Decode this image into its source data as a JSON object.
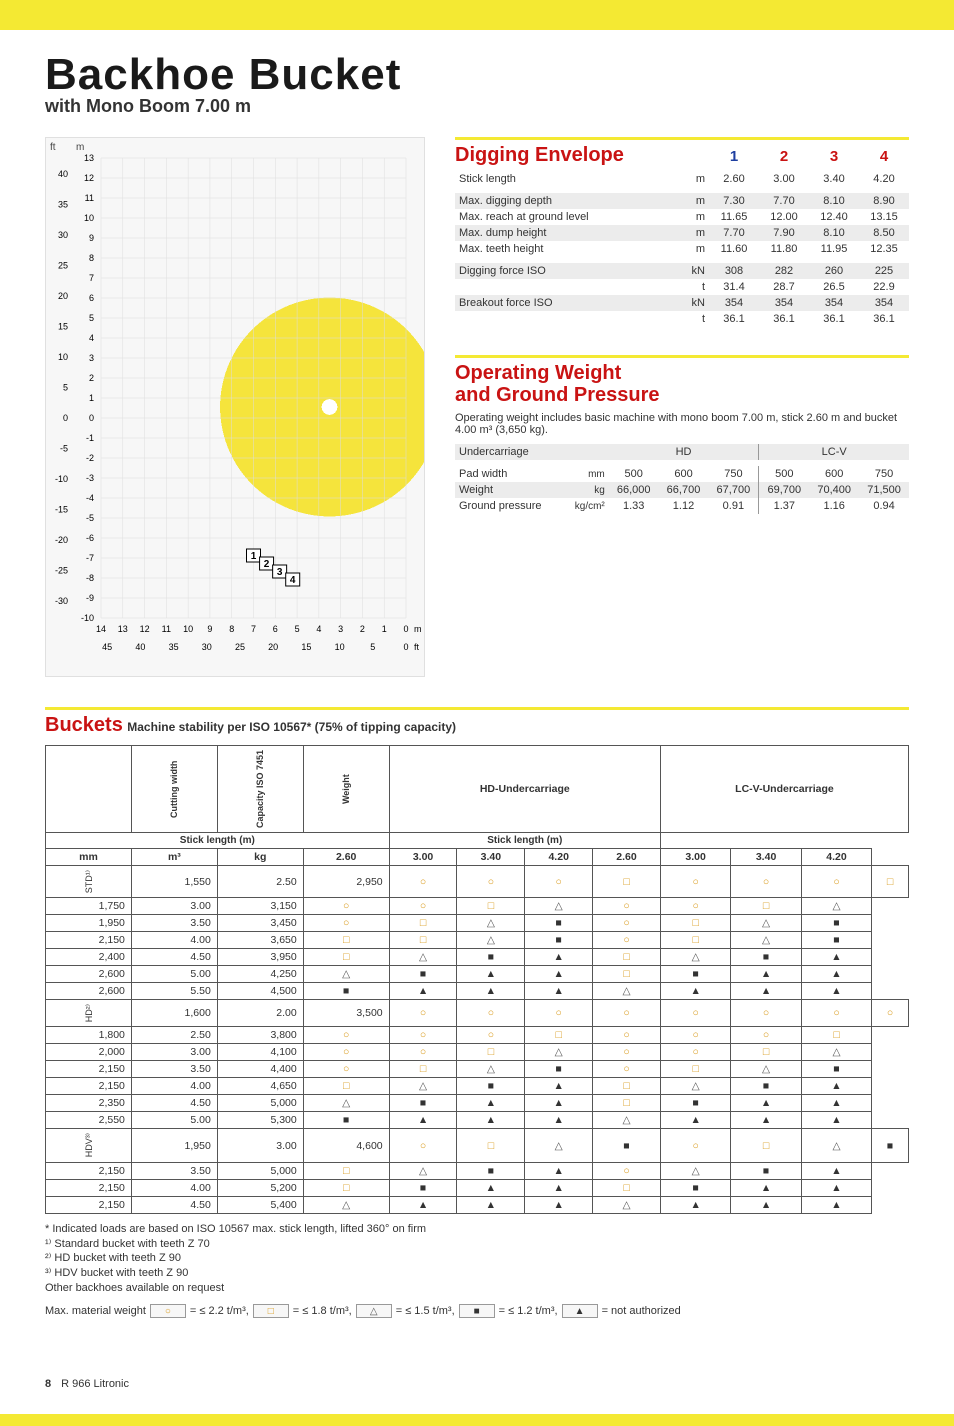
{
  "title": "Backhoe Bucket",
  "subtitle": "with Mono Boom 7.00 m",
  "digging_envelope": {
    "heading": "Digging Envelope",
    "col_nums": [
      "1",
      "2",
      "3",
      "4"
    ],
    "col1_blue": true,
    "rows": [
      {
        "label": "Stick length",
        "unit": "m",
        "vals": [
          "2.60",
          "3.00",
          "3.40",
          "4.20"
        ],
        "zebra": false,
        "spacer_after": true
      },
      {
        "label": "Max. digging depth",
        "unit": "m",
        "vals": [
          "7.30",
          "7.70",
          "8.10",
          "8.90"
        ],
        "zebra": true
      },
      {
        "label": "Max. reach at ground level",
        "unit": "m",
        "vals": [
          "11.65",
          "12.00",
          "12.40",
          "13.15"
        ],
        "zebra": false
      },
      {
        "label": "Max. dump height",
        "unit": "m",
        "vals": [
          "7.70",
          "7.90",
          "8.10",
          "8.50"
        ],
        "zebra": true
      },
      {
        "label": "Max. teeth height",
        "unit": "m",
        "vals": [
          "11.60",
          "11.80",
          "11.95",
          "12.35"
        ],
        "zebra": false,
        "spacer_after": true
      },
      {
        "label": "Digging force ISO",
        "unit": "kN",
        "vals": [
          "308",
          "282",
          "260",
          "225"
        ],
        "zebra": true
      },
      {
        "label": "",
        "unit": "t",
        "vals": [
          "31.4",
          "28.7",
          "26.5",
          "22.9"
        ],
        "zebra": false
      },
      {
        "label": "Breakout force ISO",
        "unit": "kN",
        "vals": [
          "354",
          "354",
          "354",
          "354"
        ],
        "zebra": true
      },
      {
        "label": "",
        "unit": "t",
        "vals": [
          "36.1",
          "36.1",
          "36.1",
          "36.1"
        ],
        "zebra": false
      }
    ]
  },
  "operating_weight": {
    "heading_l1": "Operating Weight",
    "heading_l2": "and Ground Pressure",
    "desc": "Operating weight includes basic machine with mono boom 7.00 m, stick 2.60 m and bucket 4.00 m³ (3,650 kg).",
    "group_headers": [
      "HD",
      "LC-V"
    ],
    "sub_headers": [
      "500",
      "600",
      "750",
      "500",
      "600",
      "750"
    ],
    "rows": [
      {
        "label": "Undercarriage",
        "unit": "",
        "vals": [
          "",
          "",
          "",
          "",
          "",
          ""
        ],
        "zebra": true,
        "is_header": true
      },
      {
        "label": "Pad width",
        "unit": "mm",
        "vals": [
          "500",
          "600",
          "750",
          "500",
          "600",
          "750"
        ],
        "zebra": false
      },
      {
        "label": "Weight",
        "unit": "kg",
        "vals": [
          "66,000",
          "66,700",
          "67,700",
          "69,700",
          "70,400",
          "71,500"
        ],
        "zebra": true
      },
      {
        "label": "Ground pressure",
        "unit": "kg/cm²",
        "vals": [
          "1.33",
          "1.12",
          "0.91",
          "1.37",
          "1.16",
          "0.94"
        ],
        "zebra": false
      }
    ]
  },
  "buckets": {
    "heading": "Buckets",
    "sub_heading": "Machine stability per ISO 10567* (75% of tipping capacity)",
    "uc_headers": [
      "HD-Undercarriage",
      "LC-V-Undercarriage"
    ],
    "stick_label": "Stick length (m)",
    "sticks": [
      "2.60",
      "3.00",
      "3.40",
      "4.20"
    ],
    "col_headers": [
      "Cutting width",
      "Capacity ISO 7451",
      "Weight"
    ],
    "units": [
      "mm",
      "m³",
      "kg"
    ],
    "groups": [
      {
        "label": "STD¹⁾",
        "rows": [
          {
            "cw": "1,550",
            "cap": "2.50",
            "wt": "2,950",
            "hd": [
              "c",
              "c",
              "c",
              "s"
            ],
            "lc": [
              "c",
              "c",
              "c",
              "s"
            ]
          },
          {
            "cw": "1,750",
            "cap": "3.00",
            "wt": "3,150",
            "hd": [
              "c",
              "c",
              "s",
              "t"
            ],
            "lc": [
              "c",
              "c",
              "s",
              "t"
            ]
          },
          {
            "cw": "1,950",
            "cap": "3.50",
            "wt": "3,450",
            "hd": [
              "c",
              "s",
              "t",
              "fs"
            ],
            "lc": [
              "c",
              "s",
              "t",
              "fs"
            ]
          },
          {
            "cw": "2,150",
            "cap": "4.00",
            "wt": "3,650",
            "hd": [
              "s",
              "s",
              "t",
              "fs"
            ],
            "lc": [
              "c",
              "s",
              "t",
              "fs"
            ]
          },
          {
            "cw": "2,400",
            "cap": "4.50",
            "wt": "3,950",
            "hd": [
              "s",
              "t",
              "fs",
              "ft"
            ],
            "lc": [
              "s",
              "t",
              "fs",
              "ft"
            ]
          },
          {
            "cw": "2,600",
            "cap": "5.00",
            "wt": "4,250",
            "hd": [
              "t",
              "fs",
              "ft",
              "ft"
            ],
            "lc": [
              "s",
              "fs",
              "ft",
              "ft"
            ]
          },
          {
            "cw": "2,600",
            "cap": "5.50",
            "wt": "4,500",
            "hd": [
              "fs",
              "ft",
              "ft",
              "ft"
            ],
            "lc": [
              "t",
              "ft",
              "ft",
              "ft"
            ]
          }
        ]
      },
      {
        "label": "HD²⁾",
        "rows": [
          {
            "cw": "1,600",
            "cap": "2.00",
            "wt": "3,500",
            "hd": [
              "c",
              "c",
              "c",
              "c"
            ],
            "lc": [
              "c",
              "c",
              "c",
              "c"
            ]
          },
          {
            "cw": "1,800",
            "cap": "2.50",
            "wt": "3,800",
            "hd": [
              "c",
              "c",
              "c",
              "s"
            ],
            "lc": [
              "c",
              "c",
              "c",
              "s"
            ]
          },
          {
            "cw": "2,000",
            "cap": "3.00",
            "wt": "4,100",
            "hd": [
              "c",
              "c",
              "s",
              "t"
            ],
            "lc": [
              "c",
              "c",
              "s",
              "t"
            ]
          },
          {
            "cw": "2,150",
            "cap": "3.50",
            "wt": "4,400",
            "hd": [
              "c",
              "s",
              "t",
              "fs"
            ],
            "lc": [
              "c",
              "s",
              "t",
              "fs"
            ]
          },
          {
            "cw": "2,150",
            "cap": "4.00",
            "wt": "4,650",
            "hd": [
              "s",
              "t",
              "fs",
              "ft"
            ],
            "lc": [
              "s",
              "t",
              "fs",
              "ft"
            ]
          },
          {
            "cw": "2,350",
            "cap": "4.50",
            "wt": "5,000",
            "hd": [
              "t",
              "fs",
              "ft",
              "ft"
            ],
            "lc": [
              "s",
              "fs",
              "ft",
              "ft"
            ]
          },
          {
            "cw": "2,550",
            "cap": "5.00",
            "wt": "5,300",
            "hd": [
              "fs",
              "ft",
              "ft",
              "ft"
            ],
            "lc": [
              "t",
              "ft",
              "ft",
              "ft"
            ]
          }
        ]
      },
      {
        "label": "HDV³⁾",
        "rows": [
          {
            "cw": "1,950",
            "cap": "3.00",
            "wt": "4,600",
            "hd": [
              "c",
              "s",
              "t",
              "fs"
            ],
            "lc": [
              "c",
              "s",
              "t",
              "fs"
            ]
          },
          {
            "cw": "2,150",
            "cap": "3.50",
            "wt": "5,000",
            "hd": [
              "s",
              "t",
              "fs",
              "ft"
            ],
            "lc": [
              "c",
              "t",
              "fs",
              "ft"
            ]
          },
          {
            "cw": "2,150",
            "cap": "4.00",
            "wt": "5,200",
            "hd": [
              "s",
              "fs",
              "ft",
              "ft"
            ],
            "lc": [
              "s",
              "fs",
              "ft",
              "ft"
            ]
          },
          {
            "cw": "2,150",
            "cap": "4.50",
            "wt": "5,400",
            "hd": [
              "t",
              "ft",
              "ft",
              "ft"
            ],
            "lc": [
              "t",
              "ft",
              "ft",
              "ft"
            ]
          }
        ]
      }
    ],
    "footnotes": [
      "* Indicated loads are based on ISO 10567 max. stick length, lifted 360° on firm",
      "¹⁾ Standard bucket with teeth Z 70",
      "²⁾ HD bucket with teeth Z 90",
      "³⁾ HDV bucket with teeth Z 90",
      "Other backhoes available on request"
    ],
    "legend_prefix": "Max. material weight",
    "legend": [
      {
        "sym": "c",
        "txt": "= ≤ 2.2 t/m³,"
      },
      {
        "sym": "s",
        "txt": "= ≤ 1.8 t/m³,"
      },
      {
        "sym": "t",
        "txt": "= ≤ 1.5 t/m³,"
      },
      {
        "sym": "fs",
        "txt": "= ≤ 1.2 t/m³,"
      },
      {
        "sym": "ft",
        "txt": "= not authorized"
      }
    ]
  },
  "chart": {
    "y_unit_left": "ft",
    "y_unit_right": "m",
    "y_ticks_m": [
      13,
      12,
      11,
      10,
      9,
      8,
      7,
      6,
      5,
      4,
      3,
      2,
      1,
      0,
      -1,
      -2,
      -3,
      -4,
      -5,
      -6,
      -7,
      -8,
      -9,
      -10
    ],
    "y_ticks_ft": [
      40,
      35,
      30,
      25,
      20,
      15,
      10,
      5,
      0,
      -5,
      -10,
      -15,
      -20,
      -25,
      -30
    ],
    "x_ticks_m": [
      14,
      13,
      12,
      11,
      10,
      9,
      8,
      7,
      6,
      5,
      4,
      3,
      2,
      1,
      0
    ],
    "x_unit_m": "m",
    "x_ticks_ft": [
      45,
      40,
      35,
      30,
      25,
      20,
      15,
      10,
      5,
      0
    ],
    "x_unit_ft": "ft",
    "envelope_labels": [
      "1",
      "2",
      "3",
      "4"
    ]
  },
  "footer": {
    "page": "8",
    "model": "R 966 Litronic"
  }
}
